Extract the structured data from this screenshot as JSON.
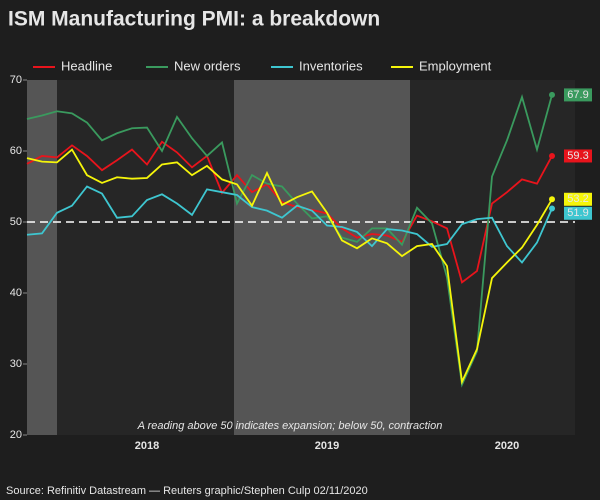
{
  "chart_data": {
    "type": "line",
    "title": "ISM Manufacturing PMI: a breakdown",
    "annotation": "A reading above 50 indicates expansion; below 50, contraction",
    "source": "Source: Refinitiv Datastream — Reuters graphic/Stephen Culp 02/11/2020",
    "categories": [
      null,
      null,
      null,
      null,
      null,
      null,
      null,
      null,
      "2018",
      null,
      null,
      null,
      null,
      null,
      null,
      null,
      null,
      null,
      null,
      null,
      "2019",
      null,
      null,
      null,
      null,
      null,
      null,
      null,
      null,
      null,
      null,
      null,
      "2020",
      null,
      null,
      null
    ],
    "series": [
      {
        "name": "Headline",
        "color": "#e8141c",
        "values": [
          58.2,
          59.3,
          59.1,
          60.8,
          59.3,
          57.3,
          58.7,
          60.2,
          58.1,
          61.3,
          59.8,
          57.7,
          59.3,
          54.1,
          56.6,
          54.2,
          55.3,
          52.8,
          52.1,
          51.7,
          51.2,
          49.1,
          47.8,
          48.3,
          48.1,
          47.2,
          50.9,
          50.1,
          49.1,
          41.5,
          43.1,
          52.6,
          54.2,
          56.0,
          55.4,
          59.3
        ]
      },
      {
        "name": "New orders",
        "color": "#3a9a5e",
        "values": [
          64.5,
          65.0,
          65.6,
          65.3,
          64.0,
          61.5,
          62.5,
          63.2,
          63.3,
          60.0,
          64.8,
          61.8,
          59.3,
          61.2,
          52.6,
          56.6,
          55.4,
          55.0,
          52.6,
          50.5,
          50.8,
          47.8,
          47.2,
          49.1,
          49.1,
          46.8,
          52.0,
          49.8,
          42.2,
          27.1,
          31.8,
          56.4,
          61.5,
          67.6,
          60.2,
          67.9
        ]
      },
      {
        "name": "Inventories",
        "color": "#3ec6d0",
        "values": [
          48.2,
          48.4,
          51.3,
          52.3,
          55.0,
          54.0,
          50.6,
          50.8,
          53.1,
          53.9,
          52.6,
          51.0,
          54.6,
          54.2,
          53.8,
          52.1,
          51.6,
          50.6,
          52.3,
          51.6,
          49.5,
          49.3,
          48.6,
          46.6,
          49.0,
          48.8,
          48.3,
          46.5,
          46.9,
          49.7,
          50.4,
          50.6,
          46.6,
          44.3,
          47.1,
          51.9
        ]
      },
      {
        "name": "Employment",
        "color": "#f5f50a",
        "values": [
          59.0,
          58.5,
          58.4,
          60.2,
          56.6,
          55.5,
          56.3,
          56.1,
          56.2,
          58.1,
          58.4,
          56.6,
          57.9,
          56.0,
          55.3,
          52.3,
          56.9,
          52.4,
          53.5,
          54.3,
          51.3,
          47.4,
          46.3,
          47.7,
          47.0,
          45.2,
          46.6,
          46.9,
          43.8,
          27.5,
          32.1,
          42.1,
          44.3,
          46.4,
          49.6,
          53.2
        ]
      }
    ],
    "ylim": [
      20,
      70
    ],
    "yticks": [
      20,
      30,
      40,
      50,
      60,
      70
    ],
    "reference_line": 50,
    "grid": false,
    "legend": "top"
  }
}
